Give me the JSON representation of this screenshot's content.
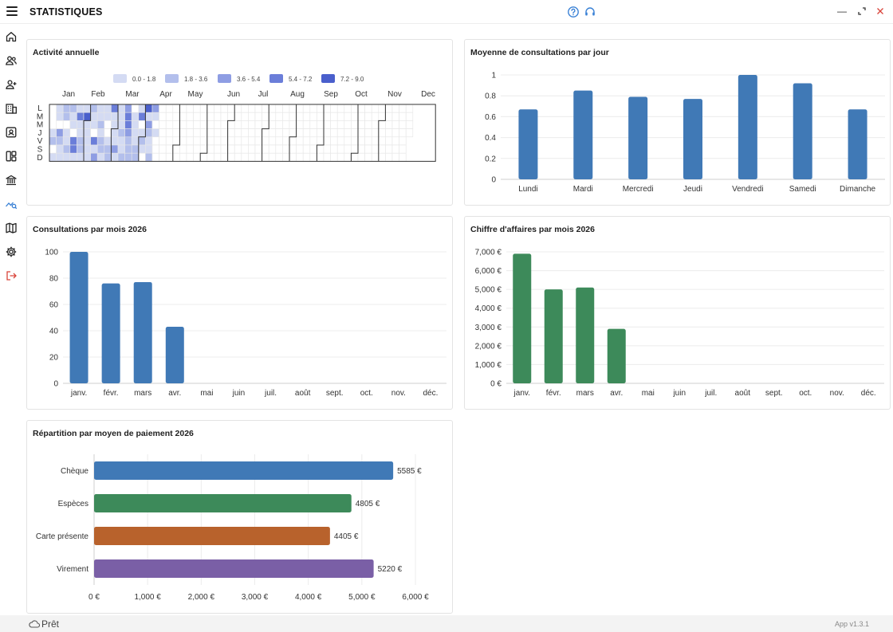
{
  "window": {
    "title": "STATISTIQUES"
  },
  "sidebar": {
    "items": [
      {
        "name": "nav-home",
        "icon": "home-icon"
      },
      {
        "name": "nav-patients",
        "icon": "users-icon"
      },
      {
        "name": "nav-add-patient",
        "icon": "user-plus-icon"
      },
      {
        "name": "nav-office",
        "icon": "building-icon"
      },
      {
        "name": "nav-contact",
        "icon": "contact-card-icon"
      },
      {
        "name": "nav-dashboard",
        "icon": "dashboard-icon"
      },
      {
        "name": "nav-bank",
        "icon": "bank-icon"
      },
      {
        "name": "nav-statistics",
        "icon": "chart-search-icon"
      },
      {
        "name": "nav-map",
        "icon": "map-icon"
      },
      {
        "name": "nav-settings",
        "icon": "gear-icon"
      },
      {
        "name": "nav-logout",
        "icon": "logout-icon"
      }
    ],
    "active": "nav-statistics",
    "logout_color": "#d9443a"
  },
  "colors": {
    "blue": "#4079b6",
    "green": "#3d8a5a",
    "orange": "#b8622c",
    "purple": "#7a5fa6",
    "accent": "#3b82d6"
  },
  "heatmap": {
    "title": "Activité annuelle",
    "legend": [
      {
        "label": "0.0 - 1.8",
        "color": "#d4dbf3"
      },
      {
        "label": "1.8 - 3.6",
        "color": "#b3bfec"
      },
      {
        "label": "3.6 - 5.4",
        "color": "#8e9de3"
      },
      {
        "label": "5.4 - 7.2",
        "color": "#6b7ed9"
      },
      {
        "label": "7.2 - 9.0",
        "color": "#4a5fcc"
      }
    ],
    "months": [
      "Jan",
      "Feb",
      "Mar",
      "Apr",
      "May",
      "Jun",
      "Jul",
      "Aug",
      "Sep",
      "Oct",
      "Nov",
      "Dec"
    ],
    "days": [
      "L",
      "M",
      "M",
      "J",
      "V",
      "S",
      "D"
    ]
  },
  "weekday_chart": {
    "title": "Moyenne de consultations par jour",
    "chart_data": {
      "type": "bar",
      "categories": [
        "Lundi",
        "Mardi",
        "Mercredi",
        "Jeudi",
        "Vendredi",
        "Samedi",
        "Dimanche"
      ],
      "values": [
        0.67,
        0.85,
        0.79,
        0.77,
        1.0,
        0.92,
        0.67
      ],
      "ylim": [
        0,
        1
      ],
      "yticks": [
        "0",
        "0.2",
        "0.4",
        "0.6",
        "0.8",
        "1"
      ],
      "color": "#4079b6"
    }
  },
  "consultations_chart": {
    "title": "Consultations par mois 2026",
    "chart_data": {
      "type": "bar",
      "categories": [
        "janv.",
        "févr.",
        "mars",
        "avr.",
        "mai",
        "juin",
        "juil.",
        "août",
        "sept.",
        "oct.",
        "nov.",
        "déc."
      ],
      "values": [
        100,
        76,
        77,
        43,
        0,
        0,
        0,
        0,
        0,
        0,
        0,
        0
      ],
      "ylim": [
        0,
        100
      ],
      "yticks": [
        "0",
        "20",
        "40",
        "60",
        "80",
        "100"
      ],
      "color": "#4079b6"
    }
  },
  "revenue_chart": {
    "title": "Chiffre d'affaires par mois 2026",
    "chart_data": {
      "type": "bar",
      "categories": [
        "janv.",
        "févr.",
        "mars",
        "avr.",
        "mai",
        "juin",
        "juil.",
        "août",
        "sept.",
        "oct.",
        "nov.",
        "déc."
      ],
      "values": [
        6900,
        5000,
        5100,
        2900,
        0,
        0,
        0,
        0,
        0,
        0,
        0,
        0
      ],
      "ylim": [
        0,
        7000
      ],
      "yticks": [
        "0 €",
        "1,000 €",
        "2,000 €",
        "3,000 €",
        "4,000 €",
        "5,000 €",
        "6,000 €",
        "7,000 €"
      ],
      "color": "#3d8a5a"
    }
  },
  "payment_chart": {
    "title": "Répartition par moyen de paiement 2026",
    "chart_data": {
      "type": "bar",
      "orientation": "horizontal",
      "categories": [
        "Chèque",
        "Espèces",
        "Carte présente",
        "Virement"
      ],
      "values": [
        5585,
        4805,
        4405,
        5220
      ],
      "value_labels": [
        "5585 €",
        "4805 €",
        "4405 €",
        "5220 €"
      ],
      "colors": [
        "#4079b6",
        "#3d8a5a",
        "#b8622c",
        "#7a5fa6"
      ],
      "xlim": [
        0,
        6000
      ],
      "xticks": [
        "0 €",
        "1,000 €",
        "2,000 €",
        "3,000 €",
        "4,000 €",
        "5,000 €",
        "6,000 €"
      ]
    }
  },
  "status": {
    "text": "Prêt",
    "version": "App v1.3.1"
  }
}
